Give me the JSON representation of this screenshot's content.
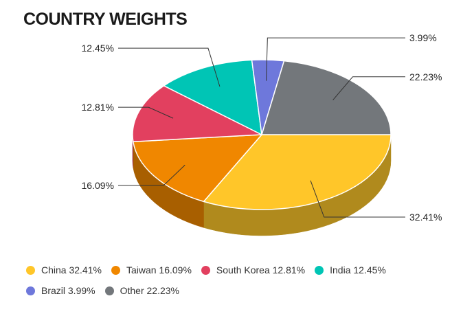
{
  "title": "COUNTRY WEIGHTS",
  "chart_data": {
    "type": "pie",
    "style": "3d",
    "title": "COUNTRY WEIGHTS",
    "slices": [
      {
        "name": "China",
        "value": 32.41,
        "label": "32.41%",
        "legend": "China 32.41%",
        "color": "#FFC629",
        "side_color": "#B08A1D"
      },
      {
        "name": "Taiwan",
        "value": 16.09,
        "label": "16.09%",
        "legend": "Taiwan 16.09%",
        "color": "#F08700",
        "side_color": "#A85F00"
      },
      {
        "name": "South Korea",
        "value": 12.81,
        "label": "12.81%",
        "legend": "South Korea 12.81%",
        "color": "#E2405F",
        "side_color": "#9E2C43"
      },
      {
        "name": "India",
        "value": 12.45,
        "label": "12.45%",
        "legend": "India 12.45%",
        "color": "#00C5B5",
        "side_color": "#008A7F"
      },
      {
        "name": "Brazil",
        "value": 3.99,
        "label": "3.99%",
        "legend": "Brazil 3.99%",
        "color": "#6E78DB",
        "side_color": "#4D5499"
      },
      {
        "name": "Other",
        "value": 22.23,
        "label": "22.23%",
        "legend": "Other 22.23%",
        "color": "#73777B",
        "side_color": "#515356"
      }
    ],
    "legend_position": "bottom-left"
  }
}
